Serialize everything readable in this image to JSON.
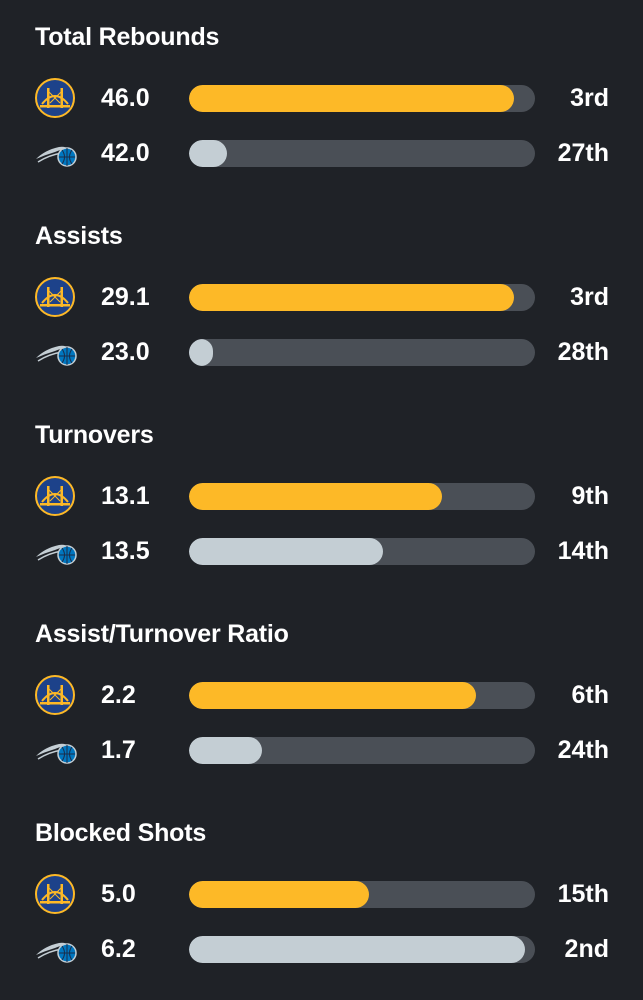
{
  "teams": {
    "gsw": {
      "logo_icon": "warriors-logo-icon",
      "bar_color": "#fdb927"
    },
    "orl": {
      "logo_icon": "magic-logo-icon",
      "bar_color": "#c4ced4"
    }
  },
  "colors": {
    "background": "#1f2227",
    "track": "#4a4f56",
    "text": "#ffffff"
  },
  "stats": [
    {
      "title": "Total Rebounds",
      "gsw": {
        "value": "46.0",
        "rank": "3rd",
        "fill": 0.94
      },
      "orl": {
        "value": "42.0",
        "rank": "27th",
        "fill": 0.11
      }
    },
    {
      "title": "Assists",
      "gsw": {
        "value": "29.1",
        "rank": "3rd",
        "fill": 0.94
      },
      "orl": {
        "value": "23.0",
        "rank": "28th",
        "fill": 0.07
      }
    },
    {
      "title": "Turnovers",
      "gsw": {
        "value": "13.1",
        "rank": "9th",
        "fill": 0.73
      },
      "orl": {
        "value": "13.5",
        "rank": "14th",
        "fill": 0.56
      }
    },
    {
      "title": "Assist/Turnover Ratio",
      "gsw": {
        "value": "2.2",
        "rank": "6th",
        "fill": 0.83
      },
      "orl": {
        "value": "1.7",
        "rank": "24th",
        "fill": 0.21
      }
    },
    {
      "title": "Blocked Shots",
      "gsw": {
        "value": "5.0",
        "rank": "15th",
        "fill": 0.52
      },
      "orl": {
        "value": "6.2",
        "rank": "2nd",
        "fill": 0.97
      }
    }
  ]
}
